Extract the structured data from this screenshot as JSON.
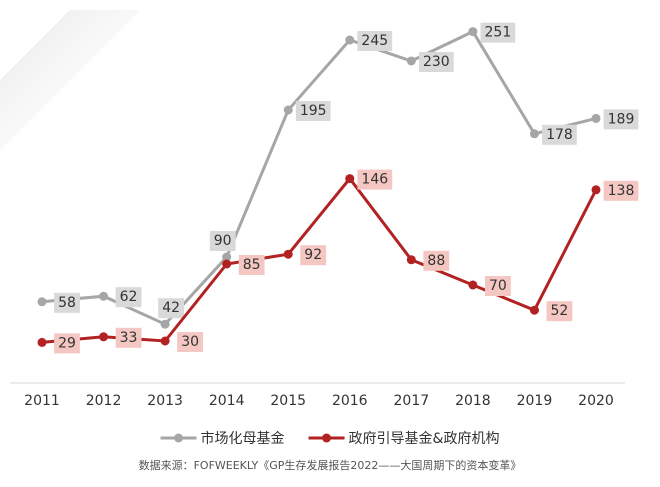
{
  "chart_data": {
    "type": "line",
    "categories": [
      "2011",
      "2012",
      "2013",
      "2014",
      "2015",
      "2016",
      "2017",
      "2018",
      "2019",
      "2020"
    ],
    "series": [
      {
        "name": "市场化母基金",
        "color": "#a6a6a6",
        "label_fill": "#d9d9d9",
        "values": [
          58,
          62,
          42,
          90,
          195,
          245,
          230,
          251,
          178,
          189
        ]
      },
      {
        "name": "政府引导基金&政府机构",
        "color": "#b22222",
        "label_fill": "#f4c7c3",
        "values": [
          29,
          33,
          30,
          85,
          92,
          146,
          88,
          70,
          52,
          138
        ]
      }
    ],
    "ylim": [
      0,
      260
    ],
    "source": "数据来源：FOFWEEKLY《GP生存发展报告2022——大国周期下的资本变革》"
  }
}
